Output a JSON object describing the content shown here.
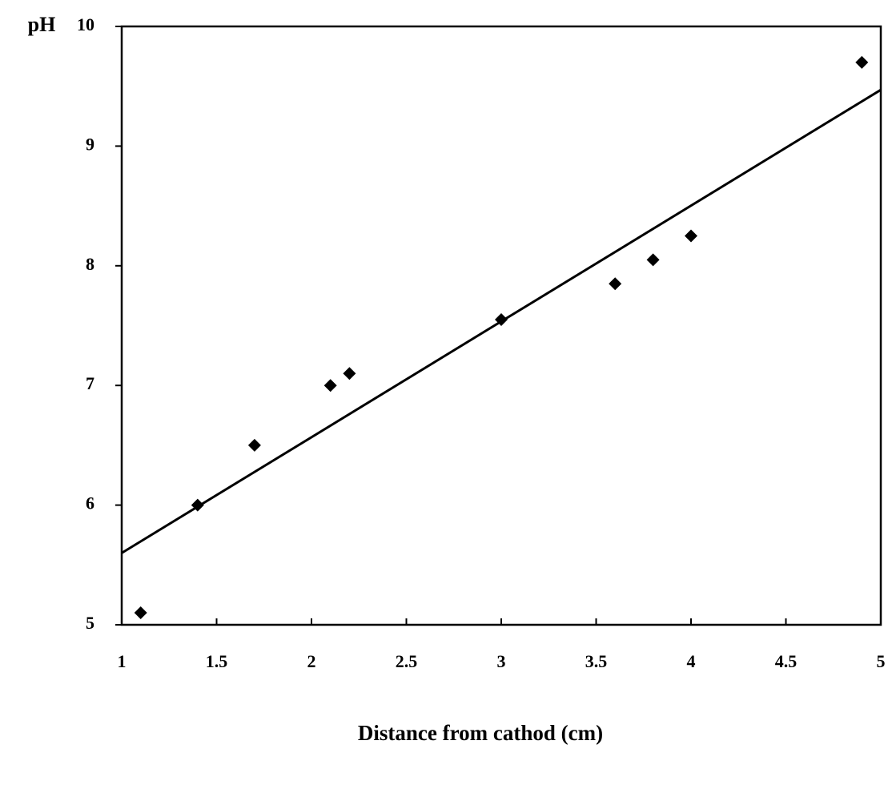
{
  "chart_data": {
    "type": "scatter",
    "ylabel": "pH",
    "xlabel": "Distance from cathod (cm)",
    "x": [
      1.1,
      1.4,
      1.7,
      2.1,
      2.2,
      3.0,
      3.6,
      3.8,
      4.0,
      4.9
    ],
    "values": [
      5.1,
      6.0,
      6.5,
      7.0,
      7.1,
      7.55,
      7.85,
      8.05,
      8.25,
      9.7
    ],
    "color": "#000000",
    "trendline": {
      "x": [
        1,
        5
      ],
      "values": [
        5.6,
        9.47
      ],
      "color": "#000000"
    },
    "xlim": [
      1,
      5
    ],
    "xticks": [
      1,
      1.5,
      2,
      2.5,
      3,
      3.5,
      4,
      4.5,
      5
    ],
    "ylim": [
      5,
      10
    ],
    "yticks": [
      5,
      6,
      7,
      8,
      9,
      10
    ],
    "grid": false
  }
}
